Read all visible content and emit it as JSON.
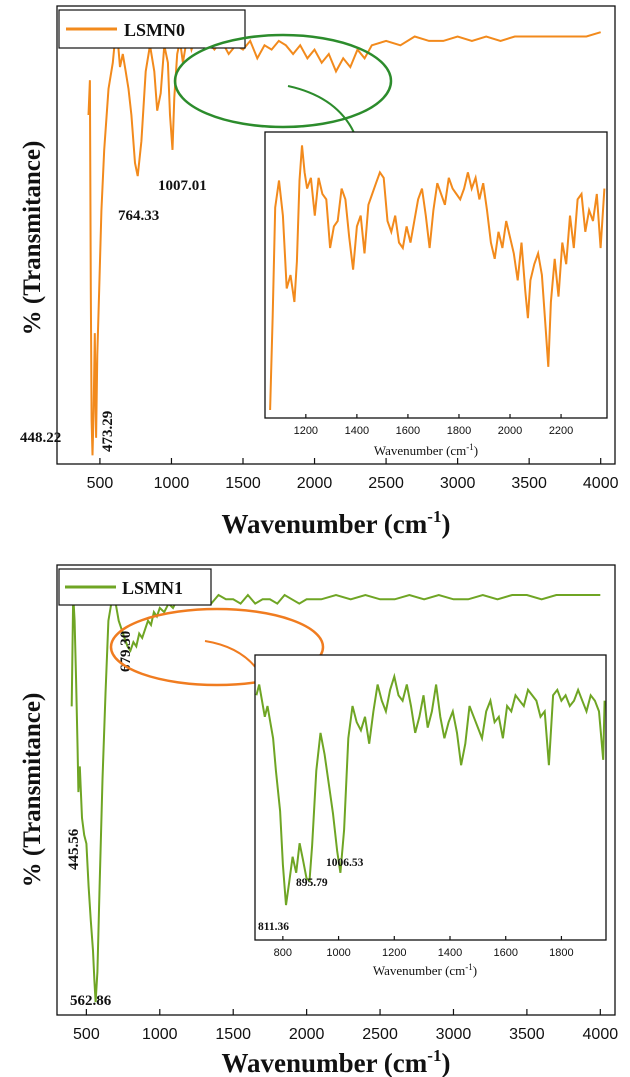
{
  "chart_data": [
    {
      "type": "line",
      "series": [
        {
          "name": "LSMN0",
          "color": "#f28a1c",
          "x": [
            420,
            430,
            436,
            442,
            448.22,
            456,
            464,
            473.29,
            482,
            495,
            510,
            530,
            560,
            590,
            610,
            625,
            640,
            660,
            680,
            700,
            720,
            745,
            764.33,
            790,
            820,
            850,
            880,
            900,
            925,
            950,
            975,
            990,
            1007.01,
            1020,
            1040,
            1060,
            1080,
            1100,
            1120,
            1140,
            1160,
            1180,
            1200,
            1250,
            1300,
            1350,
            1400,
            1450,
            1500,
            1550,
            1600,
            1650,
            1700,
            1750,
            1800,
            1850,
            1900,
            1950,
            2000,
            2050,
            2100,
            2150,
            2200,
            2250,
            2300,
            2350,
            2400,
            2500,
            2600,
            2700,
            2800,
            2900,
            3000,
            3100,
            3200,
            3300,
            3400,
            3500,
            3600,
            3700,
            3800,
            3900,
            4000
          ],
          "y": [
            80,
            88,
            40,
            10,
            2,
            12,
            30,
            6,
            25,
            40,
            58,
            72,
            86,
            92,
            99,
            97,
            91,
            94,
            90,
            86,
            80,
            69,
            66,
            74,
            90,
            96,
            90,
            81,
            85,
            96,
            92,
            80,
            72,
            84,
            94,
            97,
            92,
            96,
            98,
            95,
            97,
            99,
            96,
            97,
            95,
            97,
            94,
            96,
            95,
            97,
            93,
            96,
            95,
            97,
            96,
            94,
            96,
            93,
            95,
            92,
            94,
            90,
            93,
            91,
            95,
            93,
            96,
            97,
            96,
            98,
            97,
            97,
            98,
            97,
            98,
            97,
            98,
            98,
            98,
            98,
            98,
            98,
            99
          ]
        }
      ],
      "xlabel": "Wavenumber (cm",
      "xlabel_sup": "-1",
      "xlabel_close": ")",
      "ylabel": "% (Transmitance)",
      "xlim": [
        200,
        4100
      ],
      "ylim": [
        0,
        105
      ],
      "xticks": [
        "500",
        "1000",
        "1500",
        "2000",
        "2500",
        "3000",
        "3500",
        "4000"
      ],
      "xtick_values": [
        500,
        1000,
        1500,
        2000,
        2500,
        3000,
        3500,
        4000
      ],
      "annotations": [
        {
          "text": "448.22",
          "x": 448.22
        },
        {
          "text": "473.29",
          "x": 473.29
        },
        {
          "text": "764.33",
          "x": 764.33
        },
        {
          "text": "1007.01",
          "x": 1007.01
        }
      ],
      "legend_position": "top-left",
      "inset": {
        "type": "line",
        "xlabel": "Wavenumber (cm",
        "xlabel_sup": "-1",
        "xlabel_close": ")",
        "xlim": [
          1040,
          2380
        ],
        "ylim": [
          0,
          100
        ],
        "xticks": [
          "1200",
          "1400",
          "1600",
          "1800",
          "2000",
          "2200"
        ],
        "xtick_values": [
          1200,
          1400,
          1600,
          1800,
          2000,
          2200
        ],
        "x": [
          1060,
          1070,
          1080,
          1095,
          1110,
          1125,
          1140,
          1155,
          1165,
          1175,
          1185,
          1195,
          1205,
          1220,
          1235,
          1250,
          1265,
          1280,
          1295,
          1310,
          1325,
          1340,
          1355,
          1370,
          1385,
          1400,
          1415,
          1430,
          1445,
          1460,
          1475,
          1490,
          1505,
          1520,
          1535,
          1550,
          1565,
          1580,
          1595,
          1610,
          1625,
          1640,
          1655,
          1670,
          1685,
          1700,
          1715,
          1730,
          1745,
          1760,
          1775,
          1790,
          1805,
          1820,
          1835,
          1850,
          1865,
          1880,
          1895,
          1910,
          1925,
          1940,
          1955,
          1970,
          1985,
          2000,
          2015,
          2030,
          2045,
          2060,
          2070,
          2080,
          2095,
          2110,
          2125,
          2140,
          2150,
          2160,
          2175,
          2190,
          2205,
          2220,
          2235,
          2250,
          2265,
          2280,
          2295,
          2310,
          2325,
          2340,
          2355,
          2370
        ],
        "y": [
          0,
          35,
          75,
          85,
          72,
          45,
          50,
          40,
          55,
          85,
          98,
          88,
          82,
          86,
          72,
          86,
          80,
          78,
          60,
          68,
          70,
          82,
          78,
          64,
          52,
          68,
          72,
          58,
          76,
          80,
          84,
          88,
          86,
          70,
          66,
          72,
          62,
          60,
          68,
          62,
          70,
          78,
          82,
          72,
          60,
          74,
          84,
          80,
          76,
          86,
          82,
          80,
          78,
          82,
          88,
          82,
          86,
          78,
          84,
          74,
          62,
          56,
          66,
          60,
          70,
          64,
          58,
          48,
          62,
          44,
          34,
          48,
          54,
          58,
          50,
          30,
          16,
          40,
          56,
          42,
          62,
          54,
          72,
          60,
          78,
          80,
          66,
          74,
          70,
          80,
          60,
          82
        ]
      }
    },
    {
      "type": "line",
      "series": [
        {
          "name": "LSMN1",
          "color": "#6fa524",
          "x": [
            400,
            410,
            420,
            430,
            440,
            445.56,
            455,
            470,
            485,
            500,
            515,
            530,
            545,
            555,
            562.86,
            575,
            590,
            610,
            630,
            650,
            679.3,
            700,
            720,
            740,
            760,
            780,
            800,
            820,
            840,
            860,
            880,
            900,
            920,
            940,
            960,
            980,
            1000,
            1030,
            1060,
            1090,
            1120,
            1150,
            1180,
            1210,
            1240,
            1270,
            1300,
            1350,
            1400,
            1450,
            1500,
            1550,
            1600,
            1650,
            1700,
            1750,
            1800,
            1850,
            1900,
            1950,
            2000,
            2100,
            2200,
            2300,
            2400,
            2500,
            2600,
            2700,
            2800,
            2900,
            3000,
            3100,
            3200,
            3300,
            3400,
            3500,
            3600,
            3700,
            3800,
            3900,
            4000
          ],
          "y": [
            72,
            98,
            92,
            78,
            62,
            52,
            58,
            46,
            42,
            40,
            30,
            22,
            15,
            8,
            3,
            10,
            30,
            55,
            75,
            92,
            98,
            96,
            92,
            90,
            88,
            86,
            85,
            87,
            86,
            89,
            88,
            90,
            92,
            91,
            94,
            93,
            95,
            94,
            96,
            95,
            97,
            96,
            97,
            96,
            98,
            97,
            97,
            96,
            98,
            97,
            97,
            96,
            98,
            96,
            97,
            97,
            96,
            98,
            97,
            96,
            97,
            97,
            98,
            97,
            98,
            97,
            97,
            98,
            97,
            98,
            97,
            97,
            98,
            97,
            98,
            98,
            97,
            98,
            98,
            98,
            98
          ]
        }
      ],
      "xlabel": "Wavenumber (cm",
      "xlabel_sup": "-1",
      "xlabel_close": ")",
      "ylabel": "% (Transmitance)",
      "xlim": [
        300,
        4100
      ],
      "ylim": [
        0,
        105
      ],
      "xticks": [
        "500",
        "1000",
        "1500",
        "2000",
        "2500",
        "3000",
        "3500",
        "4000"
      ],
      "xtick_values": [
        500,
        1000,
        1500,
        2000,
        2500,
        3000,
        3500,
        4000
      ],
      "annotations": [
        {
          "text": "445.56",
          "x": 445.56
        },
        {
          "text": "562.86",
          "x": 562.86
        },
        {
          "text": "679.30",
          "x": 679.3
        }
      ],
      "legend_position": "top-left",
      "inset": {
        "type": "line",
        "xlabel": "Wavenumber (cm",
        "xlabel_sup": "-1",
        "xlabel_close": ")",
        "xlim": [
          700,
          1960
        ],
        "ylim": [
          0,
          100
        ],
        "xticks": [
          "800",
          "1000",
          "1200",
          "1400",
          "1600",
          "1800"
        ],
        "xtick_values": [
          800,
          1000,
          1200,
          1400,
          1600,
          1800
        ],
        "annotations": [
          {
            "text": "811.36",
            "x": 811.36
          },
          {
            "text": "895.79",
            "x": 895.79
          },
          {
            "text": "1006.53",
            "x": 1006.53
          }
        ],
        "x": [
          705,
          715,
          725,
          735,
          745,
          755,
          765,
          775,
          790,
          800,
          811.36,
          822,
          835,
          848,
          860,
          872,
          885,
          895.79,
          905,
          920,
          935,
          950,
          965,
          980,
          995,
          1006.53,
          1020,
          1035,
          1050,
          1065,
          1080,
          1095,
          1110,
          1125,
          1140,
          1155,
          1170,
          1185,
          1200,
          1215,
          1230,
          1245,
          1260,
          1275,
          1290,
          1305,
          1320,
          1335,
          1350,
          1365,
          1380,
          1395,
          1410,
          1425,
          1440,
          1455,
          1470,
          1485,
          1500,
          1515,
          1530,
          1545,
          1560,
          1575,
          1590,
          1605,
          1620,
          1635,
          1650,
          1665,
          1680,
          1695,
          1710,
          1725,
          1740,
          1755,
          1770,
          1785,
          1800,
          1815,
          1830,
          1845,
          1860,
          1875,
          1890,
          1905,
          1920,
          1935,
          1950,
          1955
        ],
        "y": [
          88,
          92,
          86,
          80,
          84,
          78,
          72,
          60,
          45,
          25,
          10,
          18,
          28,
          22,
          33,
          27,
          20,
          19,
          32,
          60,
          74,
          66,
          55,
          44,
          30,
          22,
          38,
          72,
          84,
          78,
          75,
          80,
          70,
          82,
          92,
          86,
          82,
          90,
          95,
          88,
          86,
          92,
          84,
          74,
          80,
          88,
          76,
          82,
          92,
          80,
          72,
          78,
          82,
          74,
          62,
          70,
          84,
          80,
          76,
          72,
          82,
          86,
          78,
          80,
          72,
          84,
          82,
          88,
          86,
          84,
          90,
          88,
          86,
          80,
          82,
          62,
          88,
          90,
          86,
          88,
          84,
          86,
          90,
          86,
          82,
          88,
          86,
          82,
          64,
          86
        ]
      }
    }
  ]
}
